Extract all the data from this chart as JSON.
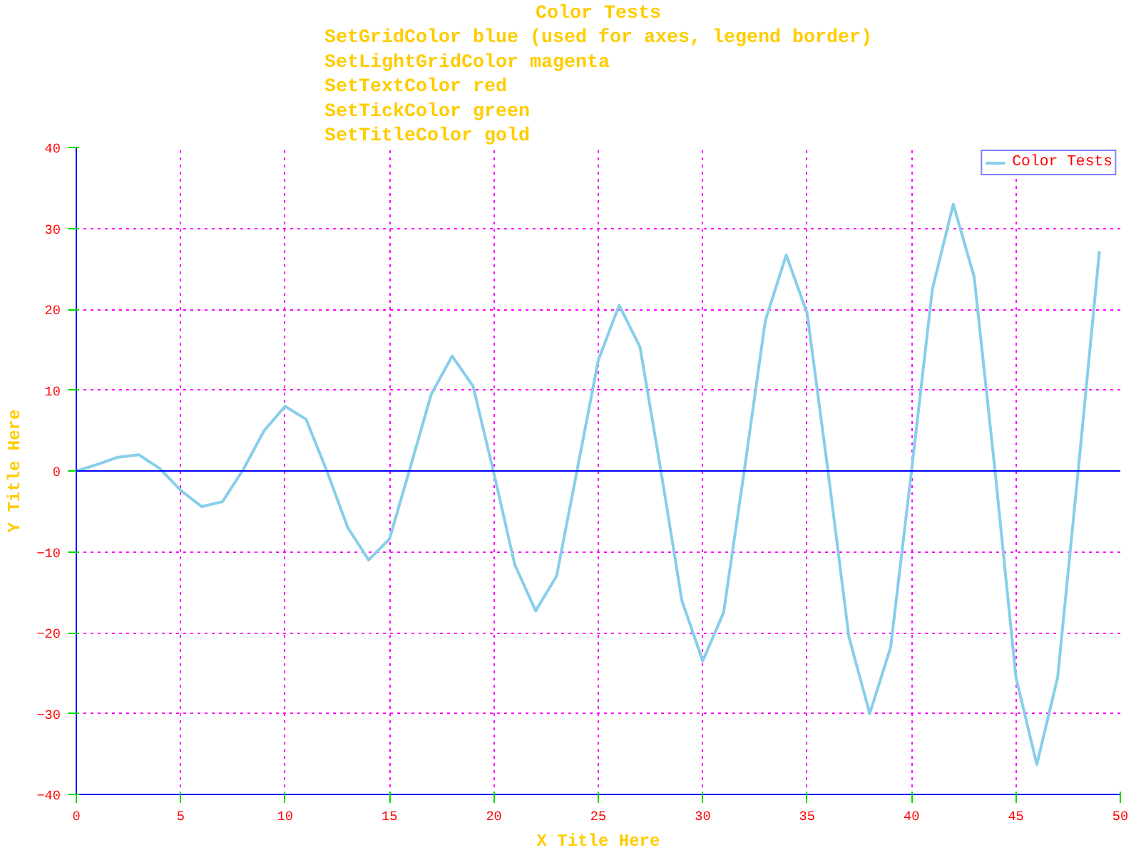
{
  "chart_data": {
    "type": "line",
    "title": "Color Tests",
    "subtitle": "SetGridColor blue (used for axes, legend border)\nSetLightGridColor magenta\nSetTextColor red\nSetTickColor green\nSetTitleColor gold",
    "xlabel": "X Title Here",
    "ylabel": "Y Title Here",
    "x": [
      0,
      1,
      2,
      3,
      4,
      5,
      6,
      7,
      8,
      9,
      10,
      11,
      12,
      13,
      14,
      15,
      16,
      17,
      18,
      19,
      20,
      21,
      22,
      23,
      24,
      25,
      26,
      27,
      28,
      29,
      30,
      31,
      32,
      33,
      34,
      35,
      36,
      37,
      38,
      39,
      40,
      41,
      42,
      43,
      44,
      45,
      46,
      47,
      48,
      49
    ],
    "series": [
      {
        "name": "Color Tests",
        "color": "#87ceeb",
        "values": [
          0,
          0.8,
          1.7,
          2.0,
          0.3,
          -2.4,
          -4.4,
          -3.8,
          0.2,
          5.0,
          8.0,
          6.4,
          0,
          -7.0,
          -11.0,
          -8.4,
          0.5,
          9.5,
          14.2,
          10.5,
          -0.3,
          -11.6,
          -17.3,
          -13.0,
          0.3,
          13.7,
          20.5,
          15.3,
          0,
          -16.0,
          -23.5,
          -17.5,
          0.2,
          18.6,
          26.7,
          19.5,
          0,
          -20.5,
          -30,
          -21.8,
          0,
          22.5,
          33,
          24,
          0,
          -25.5,
          -36.3,
          -25.5,
          0.5,
          27.2
        ]
      }
    ],
    "xlim": [
      0,
      50
    ],
    "ylim": [
      -40,
      40
    ],
    "xticks": [
      0,
      5,
      10,
      15,
      20,
      25,
      30,
      35,
      40,
      45,
      50
    ],
    "yticks": [
      -40,
      -30,
      -20,
      -10,
      0,
      10,
      20,
      30,
      40
    ],
    "ref_lines": [
      {
        "axis": "y",
        "value": 0,
        "color": "#0000ff"
      }
    ],
    "grid": true,
    "legend": "top right"
  }
}
